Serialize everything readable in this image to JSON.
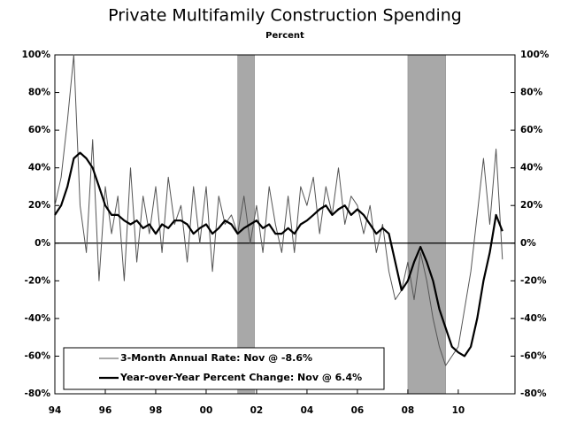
{
  "chart_data": {
    "type": "line",
    "title": "Private Multifamily Construction Spending",
    "subtitle": "Percent",
    "x": [
      1994.0,
      1994.25,
      1994.5,
      1994.75,
      1995.0,
      1995.25,
      1995.5,
      1995.75,
      1996.0,
      1996.25,
      1996.5,
      1996.75,
      1997.0,
      1997.25,
      1997.5,
      1997.75,
      1998.0,
      1998.25,
      1998.5,
      1998.75,
      1999.0,
      1999.25,
      1999.5,
      1999.75,
      2000.0,
      2000.25,
      2000.5,
      2000.75,
      2001.0,
      2001.25,
      2001.5,
      2001.75,
      2002.0,
      2002.25,
      2002.5,
      2002.75,
      2003.0,
      2003.25,
      2003.5,
      2003.75,
      2004.0,
      2004.25,
      2004.5,
      2004.75,
      2005.0,
      2005.25,
      2005.5,
      2005.75,
      2006.0,
      2006.25,
      2006.5,
      2006.75,
      2007.0,
      2007.25,
      2007.5,
      2007.75,
      2008.0,
      2008.25,
      2008.5,
      2008.75,
      2009.0,
      2009.25,
      2009.5,
      2009.75,
      2010.0,
      2010.25,
      2010.5,
      2010.75,
      2011.0,
      2011.25,
      2011.5,
      2011.75
    ],
    "series": [
      {
        "name": "3-Month Annual Rate: Nov @ -8.6%",
        "color": "#555555",
        "width": 1,
        "values": [
          20,
          35,
          65,
          100,
          20,
          -5,
          55,
          -20,
          30,
          5,
          25,
          -20,
          40,
          -10,
          25,
          5,
          30,
          -5,
          35,
          10,
          20,
          -10,
          30,
          0,
          30,
          -15,
          25,
          10,
          15,
          5,
          25,
          0,
          20,
          -5,
          30,
          10,
          -5,
          25,
          -5,
          30,
          20,
          35,
          5,
          30,
          15,
          40,
          10,
          25,
          20,
          5,
          20,
          -5,
          10,
          -15,
          -30,
          -25,
          -10,
          -30,
          -5,
          -20,
          -40,
          -55,
          -65,
          -60,
          -55,
          -35,
          -15,
          15,
          45,
          10,
          50,
          -8.6
        ]
      },
      {
        "name": "Year-over-Year Percent Change: Nov @ 6.4%",
        "color": "#000000",
        "width": 2.2,
        "values": [
          15,
          20,
          30,
          45,
          48,
          45,
          40,
          30,
          20,
          15,
          15,
          12,
          10,
          12,
          8,
          10,
          5,
          10,
          8,
          12,
          12,
          10,
          5,
          8,
          10,
          5,
          8,
          12,
          10,
          5,
          8,
          10,
          12,
          8,
          10,
          5,
          5,
          8,
          5,
          10,
          12,
          15,
          18,
          20,
          15,
          18,
          20,
          15,
          18,
          15,
          10,
          5,
          8,
          5,
          -10,
          -25,
          -20,
          -10,
          -2,
          -10,
          -20,
          -35,
          -45,
          -55,
          -58,
          -60,
          -55,
          -40,
          -20,
          -5,
          15,
          6.4
        ]
      }
    ],
    "shaded_periods": [
      {
        "start": 2001.25,
        "end": 2001.92
      },
      {
        "start": 2008.0,
        "end": 2009.5
      }
    ],
    "xlim": [
      1994,
      2012.25
    ],
    "xticks": [
      {
        "value": 1994,
        "label": "94"
      },
      {
        "value": 1996,
        "label": "96"
      },
      {
        "value": 1998,
        "label": "98"
      },
      {
        "value": 2000,
        "label": "00"
      },
      {
        "value": 2002,
        "label": "02"
      },
      {
        "value": 2004,
        "label": "04"
      },
      {
        "value": 2006,
        "label": "06"
      },
      {
        "value": 2008,
        "label": "08"
      },
      {
        "value": 2010,
        "label": "10"
      }
    ],
    "ylim": [
      -80,
      100
    ],
    "yticks": [
      {
        "value": 100,
        "label": "100%"
      },
      {
        "value": 80,
        "label": "80%"
      },
      {
        "value": 60,
        "label": "60%"
      },
      {
        "value": 40,
        "label": "40%"
      },
      {
        "value": 20,
        "label": "20%"
      },
      {
        "value": 0,
        "label": "0%"
      },
      {
        "value": -20,
        "label": "-20%"
      },
      {
        "value": -40,
        "label": "-40%"
      },
      {
        "value": -60,
        "label": "-60%"
      },
      {
        "value": -80,
        "label": "-80%"
      }
    ],
    "y2lim": [
      -80,
      100
    ],
    "y2ticks": [
      {
        "value": 100,
        "label": "100%"
      },
      {
        "value": 80,
        "label": "80%"
      },
      {
        "value": 60,
        "label": "60%"
      },
      {
        "value": 40,
        "label": "40%"
      },
      {
        "value": 20,
        "label": "20%"
      },
      {
        "value": 0,
        "label": "0%"
      },
      {
        "value": -20,
        "label": "-20%"
      },
      {
        "value": -40,
        "label": "-40%"
      },
      {
        "value": -60,
        "label": "-60%"
      },
      {
        "value": -80,
        "label": "-80%"
      }
    ]
  }
}
